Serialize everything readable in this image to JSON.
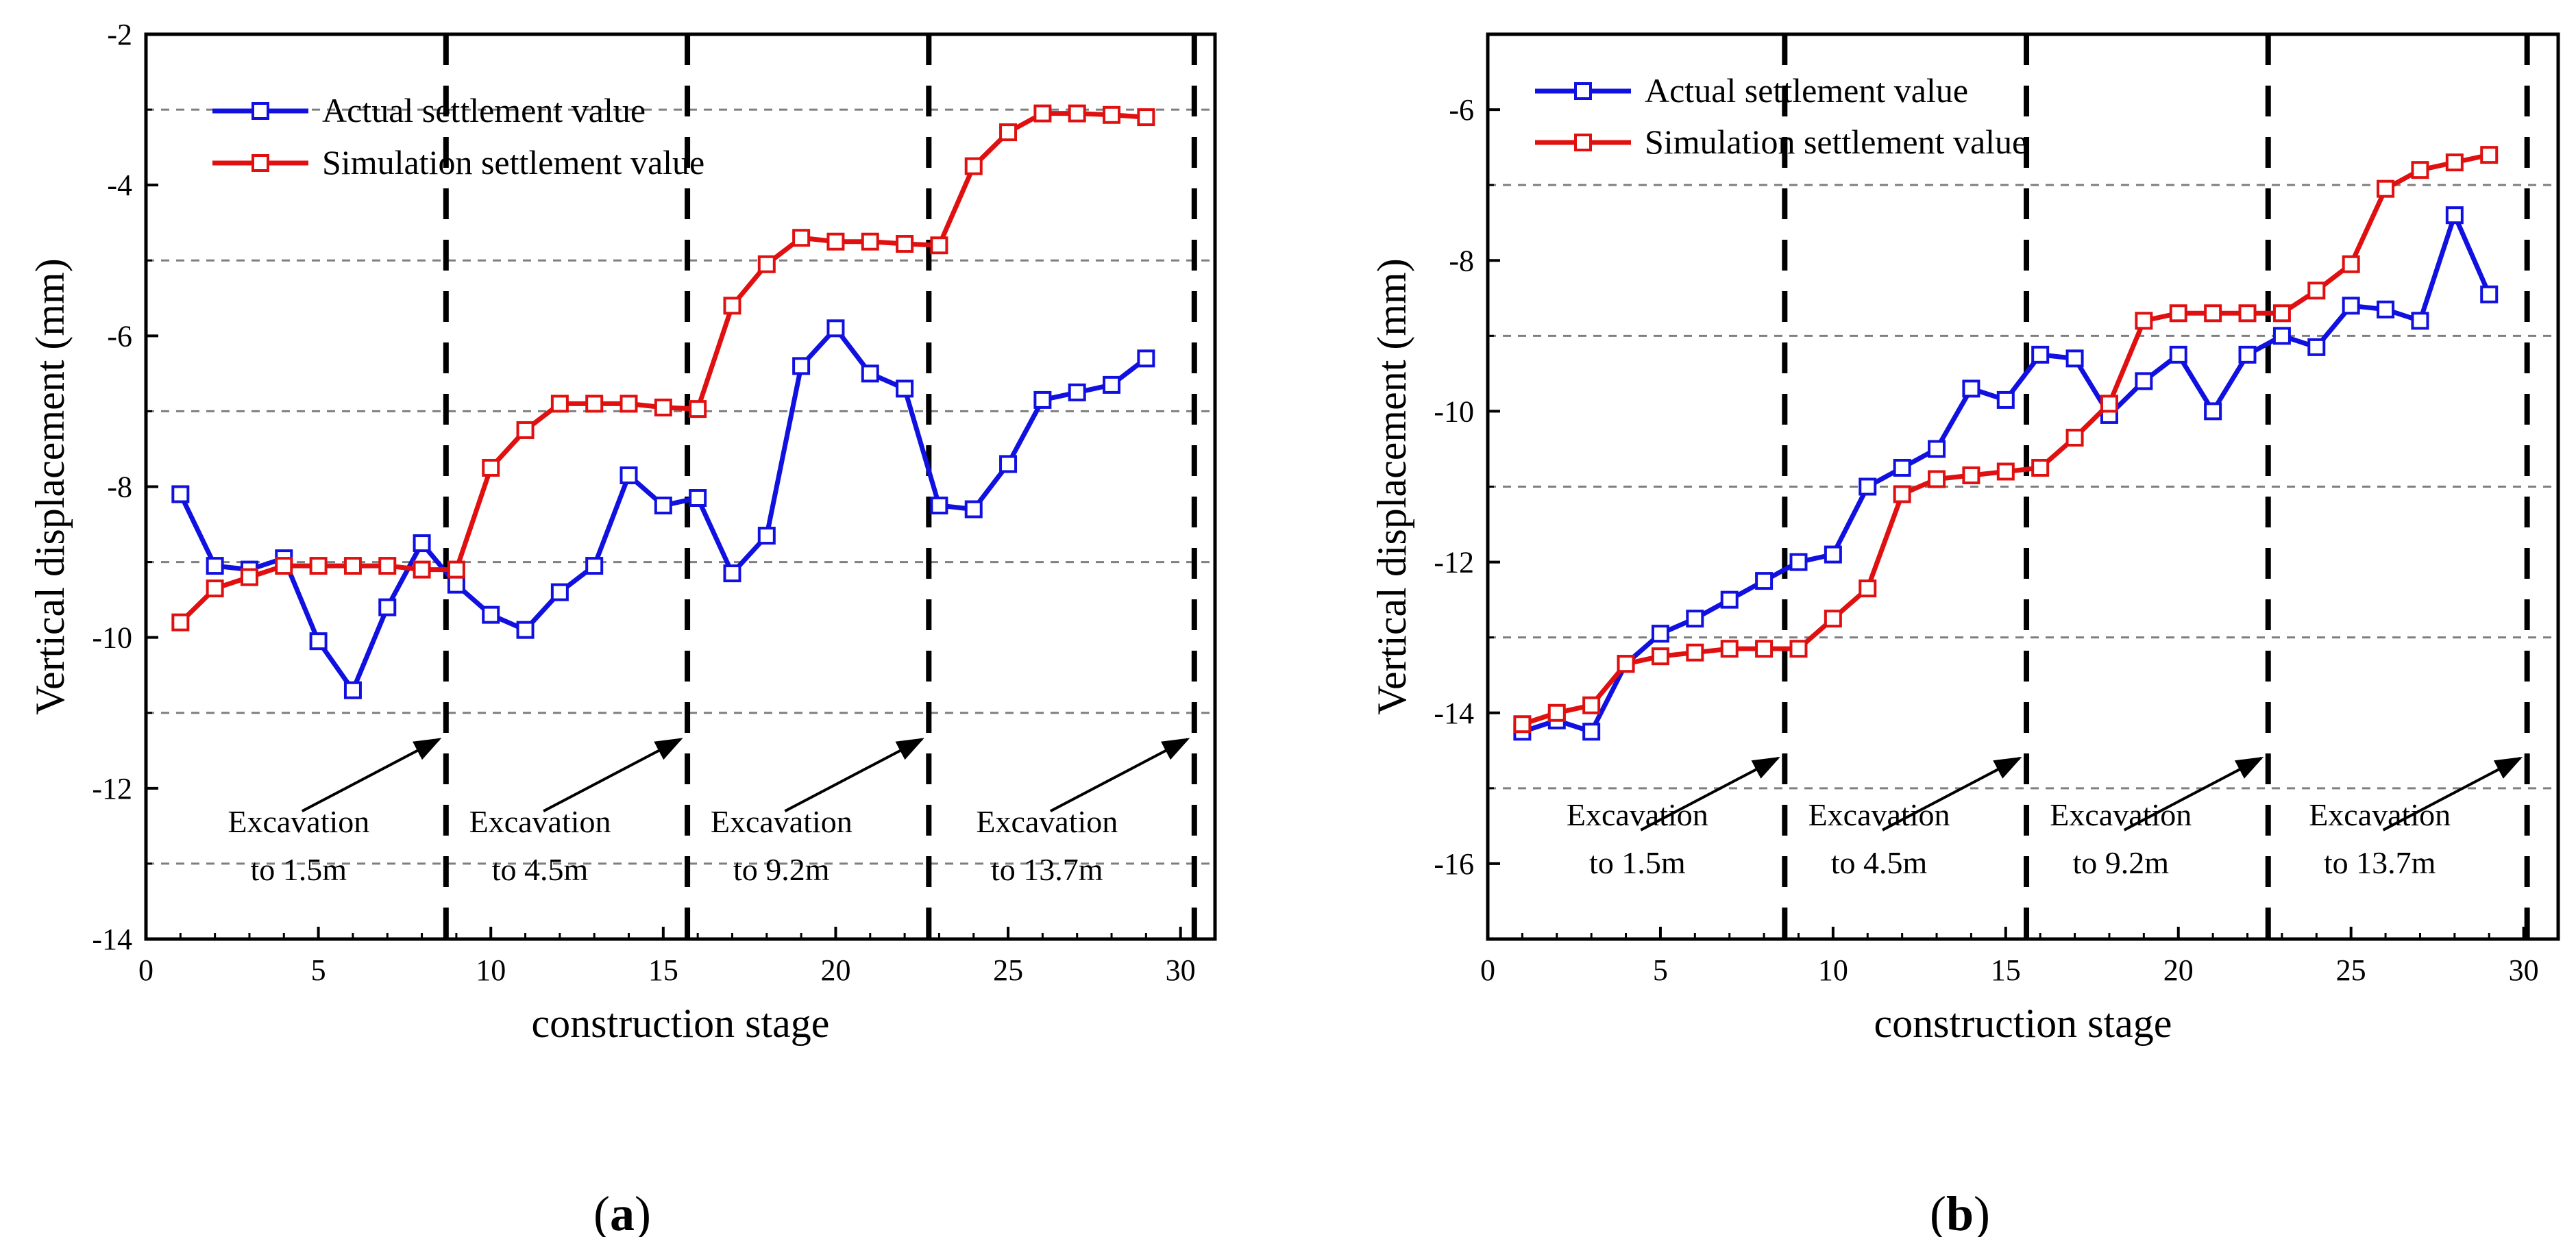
{
  "chart_data": [
    {
      "type": "line",
      "panel": "(a)",
      "panel_letter": "a",
      "xlabel": "construction stage",
      "ylabel": "Vertical displacement (mm)",
      "xlim": [
        0,
        31
      ],
      "ylim": [
        -14,
        -2
      ],
      "xticks": [
        0,
        5,
        10,
        15,
        20,
        25,
        30
      ],
      "yticks": [
        -14,
        -12,
        -10,
        -8,
        -6,
        -4,
        -2
      ],
      "grid_y": [
        -13,
        -11,
        -9,
        -7,
        -5,
        -3
      ],
      "legend_position": "top-left",
      "series": [
        {
          "name": "Actual settlement value",
          "color": "#1010e0",
          "x": [
            1,
            2,
            3,
            4,
            5,
            6,
            7,
            8,
            9,
            10,
            11,
            12,
            13,
            14,
            15,
            16,
            17,
            18,
            19,
            20,
            21,
            22,
            23,
            24,
            25,
            26,
            27,
            28,
            29
          ],
          "y": [
            -8.1,
            -9.05,
            -9.1,
            -8.95,
            -10.05,
            -10.7,
            -9.6,
            -8.75,
            -9.3,
            -9.7,
            -9.9,
            -9.4,
            -9.05,
            -7.85,
            -8.25,
            -8.15,
            -9.15,
            -8.65,
            -6.4,
            -5.9,
            -6.5,
            -6.7,
            -8.25,
            -8.3,
            -7.7,
            -6.85,
            -6.75,
            -6.65,
            -6.3
          ]
        },
        {
          "name": "Simulation settlement value",
          "color": "#e01010",
          "x": [
            1,
            2,
            3,
            4,
            5,
            6,
            7,
            8,
            9,
            10,
            11,
            12,
            13,
            14,
            15,
            16,
            17,
            18,
            19,
            20,
            21,
            22,
            23,
            24,
            25,
            26,
            27,
            28,
            29
          ],
          "y": [
            -9.8,
            -9.35,
            -9.2,
            -9.05,
            -9.05,
            -9.05,
            -9.05,
            -9.1,
            -9.1,
            -7.75,
            -7.25,
            -6.9,
            -6.9,
            -6.9,
            -6.95,
            -6.97,
            -5.6,
            -5.05,
            -4.7,
            -4.75,
            -4.75,
            -4.78,
            -4.8,
            -3.75,
            -3.3,
            -3.05,
            -3.05,
            -3.07,
            -3.1
          ]
        }
      ],
      "dividers": [
        8.7,
        15.7,
        22.7,
        30.4
      ],
      "annotations": [
        {
          "line1": "Excavation",
          "line2": "to 1.5m"
        },
        {
          "line1": "Excavation",
          "line2": "to 4.5m"
        },
        {
          "line1": "Excavation",
          "line2": "to 9.2m"
        },
        {
          "line1": "Excavation",
          "line2": "to 13.7m"
        }
      ]
    },
    {
      "type": "line",
      "panel": "(b)",
      "panel_letter": "b",
      "xlabel": "construction stage",
      "ylabel": "Vertical displacement (mm)",
      "xlim": [
        0,
        31
      ],
      "ylim": [
        -17,
        -5
      ],
      "xticks": [
        0,
        5,
        10,
        15,
        20,
        25,
        30
      ],
      "yticks": [
        -16,
        -14,
        -12,
        -10,
        -8,
        -6
      ],
      "grid_y": [
        -15,
        -13,
        -11,
        -9,
        -7
      ],
      "legend_position": "top-left",
      "series": [
        {
          "name": "Actual settlement value",
          "color": "#1010e0",
          "x": [
            1,
            2,
            3,
            4,
            5,
            6,
            7,
            8,
            9,
            10,
            11,
            12,
            13,
            14,
            15,
            16,
            17,
            18,
            19,
            20,
            21,
            22,
            23,
            24,
            25,
            26,
            27,
            28,
            29
          ],
          "y": [
            -14.25,
            -14.1,
            -14.25,
            -13.35,
            -12.95,
            -12.75,
            -12.5,
            -12.25,
            -12.0,
            -11.9,
            -11.0,
            -10.75,
            -10.5,
            -9.7,
            -9.85,
            -9.25,
            -9.3,
            -10.05,
            -9.6,
            -9.25,
            -10.0,
            -9.25,
            -9.0,
            -9.15,
            -8.6,
            -8.65,
            -8.8,
            -7.4,
            -8.45
          ]
        },
        {
          "name": "Simulation settlement value",
          "color": "#e01010",
          "x": [
            1,
            2,
            3,
            4,
            5,
            6,
            7,
            8,
            9,
            10,
            11,
            12,
            13,
            14,
            15,
            16,
            17,
            18,
            19,
            20,
            21,
            22,
            23,
            24,
            25,
            26,
            27,
            28,
            29
          ],
          "y": [
            -14.15,
            -14.0,
            -13.9,
            -13.35,
            -13.25,
            -13.2,
            -13.15,
            -13.15,
            -13.15,
            -12.75,
            -12.35,
            -11.1,
            -10.9,
            -10.85,
            -10.8,
            -10.75,
            -10.35,
            -9.9,
            -8.8,
            -8.7,
            -8.7,
            -8.7,
            -8.7,
            -8.4,
            -8.05,
            -7.05,
            -6.8,
            -6.7,
            -6.6
          ]
        }
      ],
      "dividers": [
        8.6,
        15.6,
        22.6,
        30.1
      ],
      "annotations": [
        {
          "line1": "Excavation",
          "line2": "to 1.5m"
        },
        {
          "line1": "Excavation",
          "line2": "to 4.5m"
        },
        {
          "line1": "Excavation",
          "line2": "to 9.2m"
        },
        {
          "line1": "Excavation",
          "line2": "to 13.7m"
        }
      ]
    }
  ]
}
